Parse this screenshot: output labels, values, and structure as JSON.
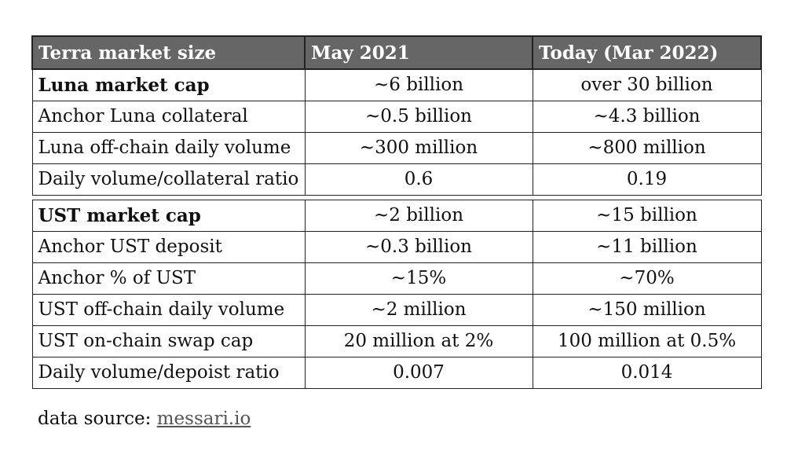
{
  "table": {
    "headers": [
      "Terra market size",
      "May 2021",
      "Today (Mar 2022)"
    ],
    "group1": [
      {
        "label": "Luna market cap",
        "may2021": "~6 billion",
        "today": "over 30 billion",
        "bold": true
      },
      {
        "label": "Anchor Luna collateral",
        "may2021": "~0.5 billion",
        "today": "~4.3 billion",
        "bold": false
      },
      {
        "label": "Luna off-chain daily volume",
        "may2021": "~300 million",
        "today": "~800 million",
        "bold": false
      },
      {
        "label": "Daily volume/collateral ratio",
        "may2021": "0.6",
        "today": "0.19",
        "bold": false
      }
    ],
    "group2": [
      {
        "label": "UST market cap",
        "may2021": "~2 billion",
        "today": "~15 billion",
        "bold": true
      },
      {
        "label": "Anchor UST deposit",
        "may2021": "~0.3 billion",
        "today": "~11 billion",
        "bold": false
      },
      {
        "label": "Anchor % of UST",
        "may2021": "~15%",
        "today": "~70%",
        "bold": false
      },
      {
        "label": "UST off-chain daily volume",
        "may2021": "~2 million",
        "today": "~150 million",
        "bold": false
      },
      {
        "label": "UST on-chain swap cap",
        "may2021": "20 million at 2%",
        "today": "100 million at 0.5%",
        "bold": false
      },
      {
        "label": "Daily volume/depoist ratio",
        "may2021": "0.007",
        "today": "0.014",
        "bold": false
      }
    ]
  },
  "source": {
    "prefix": "data source: ",
    "link_text": "messari.io"
  }
}
